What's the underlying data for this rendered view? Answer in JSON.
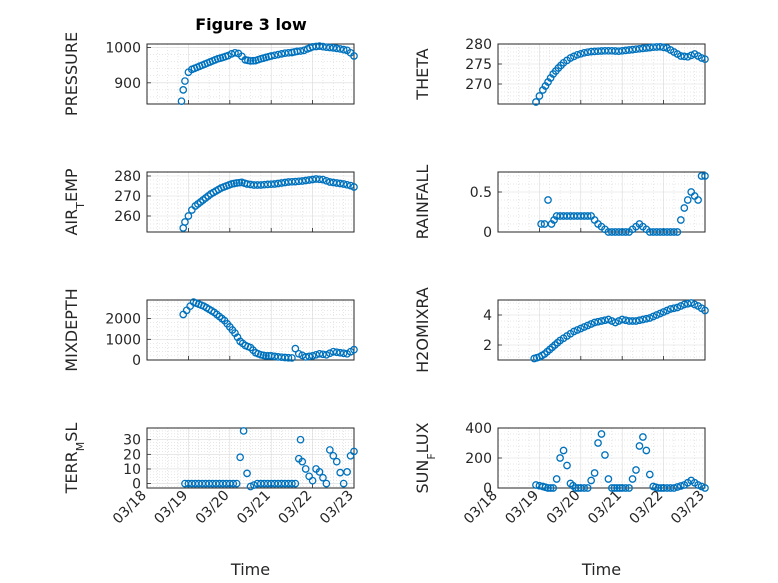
{
  "figure": {
    "title": "Figure 3 low",
    "marker_color": "#0072BD",
    "grid": "major-and-minor"
  },
  "chart_data": [
    {
      "type": "scatter",
      "ylabel": "PRESSURE",
      "xlabel": "",
      "xlim": [
        "03/18",
        "03/23"
      ],
      "ylim": [
        840,
        1010
      ],
      "yticks": [
        900,
        1000
      ],
      "xticks": [],
      "x": [
        "03/18 20:00",
        "03/18 21:00",
        "03/18 22:00",
        "03/19 00:00",
        "03/19 02:00",
        "03/19 05:00",
        "03/19 08:00",
        "03/19 11:00",
        "03/19 14:00",
        "03/19 17:00",
        "03/19 20:00",
        "03/19 23:00",
        "03/20 01:00",
        "03/20 03:00",
        "03/20 05:00",
        "03/20 07:00",
        "03/20 09:00",
        "03/20 12:00",
        "03/20 15:00",
        "03/20 18:00",
        "03/20 21:00",
        "03/21 00:00",
        "03/21 04:00",
        "03/21 08:00",
        "03/21 12:00",
        "03/21 15:00",
        "03/21 17:00",
        "03/21 19:00",
        "03/21 21:00",
        "03/22 00:00",
        "03/22 04:00",
        "03/22 08:00",
        "03/22 12:00",
        "03/22 16:00",
        "03/22 20:00",
        "03/22 22:00",
        "03/23 00:00"
      ],
      "y": [
        848,
        880,
        905,
        930,
        938,
        944,
        950,
        956,
        962,
        968,
        972,
        977,
        982,
        985,
        983,
        975,
        965,
        962,
        963,
        968,
        972,
        976,
        980,
        984,
        986,
        989,
        990,
        992,
        996,
        1002,
        1004,
        1001,
        999,
        996,
        992,
        985,
        976
      ]
    },
    {
      "type": "scatter",
      "ylabel": "THETA",
      "xlabel": "",
      "xlim": [
        "03/18",
        "03/23"
      ],
      "ylim": [
        265,
        280
      ],
      "yticks": [
        270,
        275,
        280
      ],
      "xticks": [],
      "x": [
        "03/18 22:00",
        "03/19 00:00",
        "03/19 02:00",
        "03/19 05:00",
        "03/19 08:00",
        "03/19 11:00",
        "03/19 14:00",
        "03/19 18:00",
        "03/19 22:00",
        "03/20 02:00",
        "03/20 06:00",
        "03/20 10:00",
        "03/20 14:00",
        "03/20 18:00",
        "03/20 22:00",
        "03/21 02:00",
        "03/21 06:00",
        "03/21 10:00",
        "03/21 14:00",
        "03/21 18:00",
        "03/21 22:00",
        "03/22 02:00",
        "03/22 06:00",
        "03/22 10:00",
        "03/22 14:00",
        "03/22 18:00",
        "03/22 22:00",
        "03/23 00:00"
      ],
      "y": [
        265.5,
        267,
        268.5,
        270.5,
        272.5,
        274,
        275.3,
        276.5,
        277.3,
        277.8,
        278.1,
        278.2,
        278.3,
        278.3,
        278.2,
        278.4,
        278.6,
        278.8,
        279.0,
        279.2,
        279.3,
        279.0,
        278.0,
        277.0,
        276.8,
        277.5,
        276.5,
        276.2
      ]
    },
    {
      "type": "scatter",
      "ylabel": "AIR_TEMP",
      "xlabel": "",
      "xlim": [
        "03/18",
        "03/23"
      ],
      "ylim": [
        252,
        282
      ],
      "yticks": [
        260,
        270,
        280
      ],
      "xticks": [],
      "x": [
        "03/18 21:00",
        "03/18 22:00",
        "03/19 00:00",
        "03/19 02:00",
        "03/19 04:00",
        "03/19 07:00",
        "03/19 10:00",
        "03/19 13:00",
        "03/19 16:00",
        "03/19 19:00",
        "03/19 22:00",
        "03/20 01:00",
        "03/20 04:00",
        "03/20 07:00",
        "03/20 10:00",
        "03/20 14:00",
        "03/20 18:00",
        "03/20 22:00",
        "03/21 02:00",
        "03/21 06:00",
        "03/21 10:00",
        "03/21 14:00",
        "03/21 18:00",
        "03/21 22:00",
        "03/22 02:00",
        "03/22 06:00",
        "03/22 10:00",
        "03/22 14:00",
        "03/22 18:00",
        "03/22 22:00",
        "03/23 00:00"
      ],
      "y": [
        254,
        257,
        260,
        263,
        265,
        267,
        269,
        271,
        272.5,
        274,
        275,
        276,
        276.5,
        276.8,
        276,
        275.5,
        275.5,
        275.8,
        276,
        276.5,
        277,
        277.2,
        277.5,
        278,
        278.5,
        278.2,
        277,
        276.5,
        276,
        275.2,
        274.5
      ]
    },
    {
      "type": "scatter",
      "ylabel": "RAINFALL",
      "xlabel": "",
      "xlim": [
        "03/18",
        "03/23"
      ],
      "ylim": [
        0,
        0.75
      ],
      "yticks": [
        0,
        0.5
      ],
      "xticks": [],
      "x": [
        "03/19 01:00",
        "03/19 03:00",
        "03/19 05:00",
        "03/19 07:00",
        "03/19 10:00",
        "03/19 14:00",
        "03/19 18:00",
        "03/19 22:00",
        "03/20 02:00",
        "03/20 06:00",
        "03/20 10:00",
        "03/20 16:00",
        "03/20 22:00",
        "03/21 04:00",
        "03/21 10:00",
        "03/21 16:00",
        "03/21 22:00",
        "03/22 04:00",
        "03/22 08:00",
        "03/22 12:00",
        "03/22 16:00",
        "03/22 20:00",
        "03/22 22:00",
        "03/23 00:00"
      ],
      "y": [
        0.1,
        0.1,
        0.4,
        0.1,
        0.2,
        0.2,
        0.2,
        0.2,
        0.2,
        0.2,
        0.1,
        0,
        0,
        0,
        0.1,
        0,
        0,
        0,
        0,
        0.3,
        0.5,
        0.4,
        0.7,
        0.7
      ]
    },
    {
      "type": "scatter",
      "ylabel": "MIXDEPTH",
      "xlabel": "",
      "xlim": [
        "03/18",
        "03/23"
      ],
      "ylim": [
        0,
        2900
      ],
      "yticks": [
        0,
        1000,
        2000
      ],
      "xticks": [],
      "x": [
        "03/18 21:00",
        "03/18 23:00",
        "03/19 01:00",
        "03/19 03:00",
        "03/19 06:00",
        "03/19 09:00",
        "03/19 12:00",
        "03/19 15:00",
        "03/19 18:00",
        "03/19 21:00",
        "03/20 00:00",
        "03/20 03:00",
        "03/20 06:00",
        "03/20 09:00",
        "03/20 12:00",
        "03/20 15:00",
        "03/20 18:00",
        "03/20 21:00",
        "03/21 00:00",
        "03/21 04:00",
        "03/21 08:00",
        "03/21 12:00",
        "03/21 14:00",
        "03/21 16:00",
        "03/21 20:00",
        "03/22 00:00",
        "03/22 04:00",
        "03/22 08:00",
        "03/22 12:00",
        "03/22 16:00",
        "03/22 20:00",
        "03/23 00:00"
      ],
      "y": [
        2200,
        2400,
        2600,
        2800,
        2700,
        2600,
        2450,
        2300,
        2100,
        1900,
        1600,
        1300,
        900,
        700,
        600,
        350,
        250,
        200,
        200,
        150,
        120,
        100,
        550,
        300,
        150,
        200,
        300,
        250,
        400,
        350,
        300,
        500
      ]
    },
    {
      "type": "scatter",
      "ylabel": "H2OMIXRA",
      "xlabel": "",
      "xlim": [
        "03/18",
        "03/23"
      ],
      "ylim": [
        1,
        5
      ],
      "yticks": [
        2,
        4
      ],
      "xticks": [],
      "x": [
        "03/18 21:00",
        "03/19 00:00",
        "03/19 03:00",
        "03/19 06:00",
        "03/19 09:00",
        "03/19 12:00",
        "03/19 16:00",
        "03/19 20:00",
        "03/20 00:00",
        "03/20 04:00",
        "03/20 08:00",
        "03/20 12:00",
        "03/20 16:00",
        "03/20 20:00",
        "03/21 00:00",
        "03/21 04:00",
        "03/21 08:00",
        "03/21 12:00",
        "03/21 16:00",
        "03/21 20:00",
        "03/22 00:00",
        "03/22 04:00",
        "03/22 08:00",
        "03/22 12:00",
        "03/22 16:00",
        "03/22 20:00",
        "03/23 00:00"
      ],
      "y": [
        1.1,
        1.2,
        1.4,
        1.7,
        2.0,
        2.3,
        2.6,
        2.9,
        3.1,
        3.3,
        3.5,
        3.6,
        3.7,
        3.5,
        3.7,
        3.6,
        3.6,
        3.7,
        3.8,
        4.0,
        4.2,
        4.4,
        4.5,
        4.7,
        4.8,
        4.6,
        4.3
      ]
    },
    {
      "type": "scatter",
      "ylabel": "TERR_MSL",
      "xlabel": "Time",
      "xlim": [
        "03/18",
        "03/23"
      ],
      "ylim": [
        -3,
        38
      ],
      "yticks": [
        0,
        10,
        20,
        30
      ],
      "xticks": [
        "03/18",
        "03/19",
        "03/20",
        "03/21",
        "03/22",
        "03/23"
      ],
      "x": [
        "03/18 22:00",
        "03/19 04:00",
        "03/19 10:00",
        "03/19 16:00",
        "03/19 22:00",
        "03/20 04:00",
        "03/20 08:00",
        "03/20 10:00",
        "03/20 12:00",
        "03/20 16:00",
        "03/20 22:00",
        "03/21 04:00",
        "03/21 10:00",
        "03/21 14:00",
        "03/21 16:00",
        "03/21 17:00",
        "03/21 18:00",
        "03/21 20:00",
        "03/21 22:00",
        "03/22 00:00",
        "03/22 02:00",
        "03/22 04:00",
        "03/22 08:00",
        "03/22 10:00",
        "03/22 14:00",
        "03/22 18:00",
        "03/22 20:00",
        "03/22 22:00",
        "03/23 00:00"
      ],
      "y": [
        0,
        0,
        0,
        0,
        0,
        0,
        36,
        7,
        -2,
        0,
        0,
        0,
        0,
        0,
        17,
        30,
        15,
        10,
        5,
        2,
        10,
        8,
        0,
        23,
        15,
        0,
        8,
        19,
        22
      ]
    },
    {
      "type": "scatter",
      "ylabel": "SUN_FLUX",
      "xlabel": "Time",
      "xlim": [
        "03/18",
        "03/23"
      ],
      "ylim": [
        0,
        400
      ],
      "yticks": [
        0,
        200,
        400
      ],
      "xticks": [
        "03/18",
        "03/19",
        "03/20",
        "03/21",
        "03/22",
        "03/23"
      ],
      "x": [
        "03/18 22:00",
        "03/19 02:00",
        "03/19 05:00",
        "03/19 08:00",
        "03/19 10:00",
        "03/19 12:00",
        "03/19 14:00",
        "03/19 16:00",
        "03/19 18:00",
        "03/19 21:00",
        "03/20 00:00",
        "03/20 04:00",
        "03/20 08:00",
        "03/20 10:00",
        "03/20 12:00",
        "03/20 14:00",
        "03/20 16:00",
        "03/20 18:00",
        "03/20 21:00",
        "03/21 00:00",
        "03/21 04:00",
        "03/21 08:00",
        "03/21 10:00",
        "03/21 12:00",
        "03/21 14:00",
        "03/21 16:00",
        "03/21 18:00",
        "03/21 21:00",
        "03/22 00:00",
        "03/22 06:00",
        "03/22 12:00",
        "03/22 16:00",
        "03/22 20:00",
        "03/23 00:00"
      ],
      "y": [
        20,
        10,
        0,
        0,
        60,
        200,
        250,
        150,
        30,
        0,
        0,
        0,
        100,
        300,
        360,
        220,
        60,
        0,
        0,
        0,
        0,
        120,
        280,
        340,
        250,
        90,
        10,
        0,
        0,
        0,
        20,
        50,
        20,
        0
      ]
    }
  ]
}
